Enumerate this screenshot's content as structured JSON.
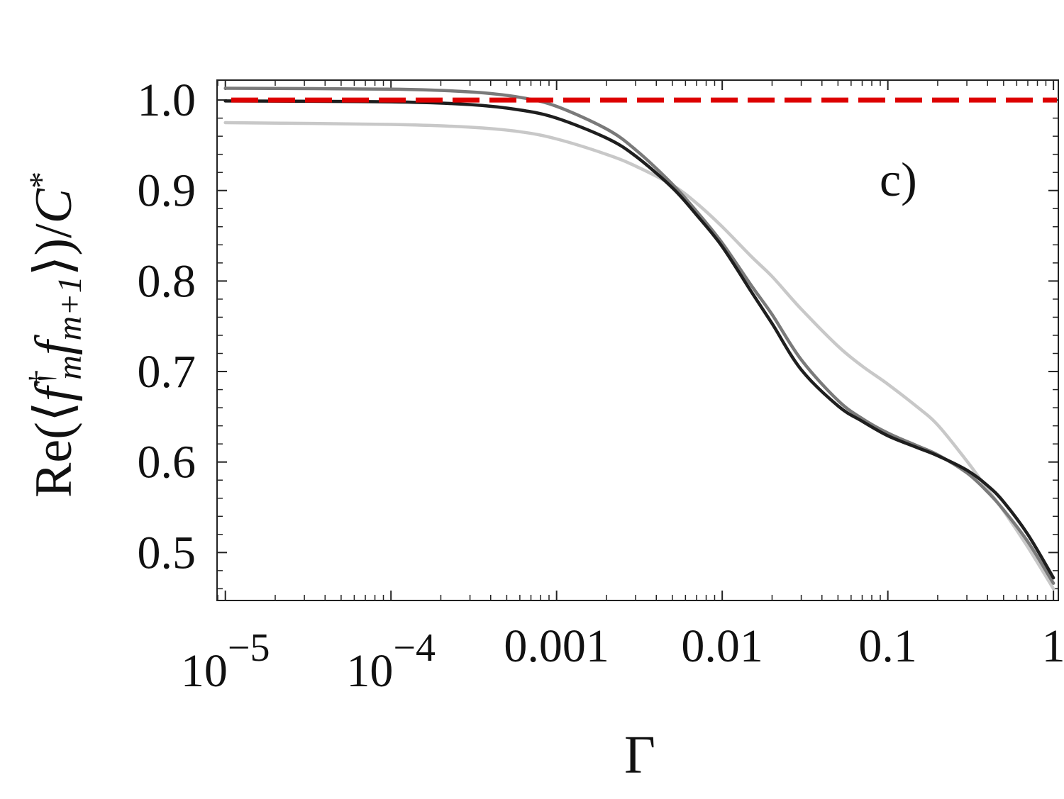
{
  "chart_data": {
    "type": "line",
    "xscale": "log",
    "xlim": [
      8.91e-06,
      1.07
    ],
    "ylim": [
      0.447,
      1.022
    ],
    "xlabel": "Γ",
    "ylabel": "Re(⟨f†mfm+1⟩)/C*",
    "ylabel_parts": {
      "prefix": "Re(⟨",
      "f": "f",
      "dagger": "†",
      "m": "m",
      "f2": "f",
      "m2": "m+1",
      "suffix": "⟩)/",
      "C": "C",
      "star": "*"
    },
    "annotation": "c)",
    "y_ticks": [
      {
        "value": 0.5,
        "label": "0.5"
      },
      {
        "value": 0.6,
        "label": "0.6"
      },
      {
        "value": 0.7,
        "label": "0.7"
      },
      {
        "value": 0.8,
        "label": "0.8"
      },
      {
        "value": 0.9,
        "label": "0.9"
      },
      {
        "value": 1.0,
        "label": "1.0"
      }
    ],
    "x_ticks": [
      {
        "value": 1e-05,
        "base": "10",
        "exp": "−5"
      },
      {
        "value": 0.0001,
        "base": "10",
        "exp": "−4"
      },
      {
        "value": 0.001,
        "label": "0.001"
      },
      {
        "value": 0.01,
        "label": "0.01"
      },
      {
        "value": 0.1,
        "label": "0.1"
      },
      {
        "value": 1,
        "label": "1"
      }
    ],
    "grid": false,
    "reference_line": {
      "y": 1.0,
      "color": "#dd0000",
      "style": "dashed"
    },
    "series": [
      {
        "color": "#7a7a7a",
        "x": [
          1e-05,
          0.0001,
          0.0003,
          0.0006,
          0.001,
          0.002,
          0.003,
          0.005,
          0.007,
          0.01,
          0.015,
          0.02,
          0.03,
          0.05,
          0.07,
          0.1,
          0.15,
          0.2,
          0.3,
          0.4,
          0.5,
          0.7,
          1.0
        ],
        "y": [
          1.013,
          1.012,
          1.009,
          1.003,
          0.993,
          0.968,
          0.945,
          0.907,
          0.877,
          0.842,
          0.795,
          0.763,
          0.713,
          0.668,
          0.648,
          0.632,
          0.618,
          0.608,
          0.588,
          0.567,
          0.547,
          0.512,
          0.466
        ]
      },
      {
        "color": "#1e1e1e",
        "x": [
          1e-05,
          0.0001,
          0.0003,
          0.0006,
          0.001,
          0.002,
          0.003,
          0.005,
          0.007,
          0.01,
          0.015,
          0.02,
          0.03,
          0.05,
          0.07,
          0.1,
          0.15,
          0.2,
          0.3,
          0.4,
          0.5,
          0.7,
          1.0
        ],
        "y": [
          0.999,
          0.998,
          0.995,
          0.989,
          0.98,
          0.958,
          0.938,
          0.903,
          0.873,
          0.838,
          0.788,
          0.753,
          0.702,
          0.662,
          0.645,
          0.629,
          0.616,
          0.607,
          0.591,
          0.574,
          0.556,
          0.52,
          0.472
        ]
      },
      {
        "color": "#c8c8c8",
        "x": [
          1e-05,
          0.0001,
          0.0003,
          0.0006,
          0.001,
          0.002,
          0.003,
          0.005,
          0.007,
          0.01,
          0.015,
          0.02,
          0.03,
          0.05,
          0.07,
          0.1,
          0.15,
          0.2,
          0.3,
          0.4,
          0.5,
          0.7,
          1.0
        ],
        "y": [
          0.975,
          0.973,
          0.97,
          0.965,
          0.957,
          0.94,
          0.927,
          0.906,
          0.886,
          0.86,
          0.827,
          0.805,
          0.769,
          0.728,
          0.706,
          0.686,
          0.661,
          0.641,
          0.601,
          0.57,
          0.546,
          0.506,
          0.46
        ]
      }
    ]
  }
}
